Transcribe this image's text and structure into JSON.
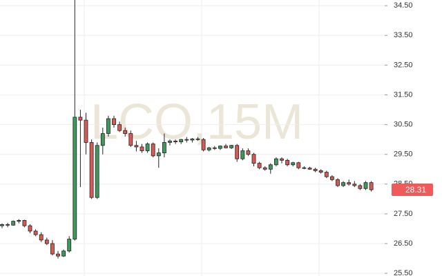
{
  "chart_data": {
    "type": "candlestick",
    "watermark": "LCO,15M",
    "up_color": "#3d9a5c",
    "down_color": "#d65a55",
    "last_price": 28.31,
    "last_price_color": "#ef5a5a",
    "grid": true,
    "ylim": [
      25.41,
      34.69
    ],
    "yticks": [
      {
        "value": 25.5,
        "label": "25.50"
      },
      {
        "value": 26.5,
        "label": "26.50"
      },
      {
        "value": 27.5,
        "label": "27.50"
      },
      {
        "value": 28.5,
        "label": "28.50"
      },
      {
        "value": 29.5,
        "label": "29.50"
      },
      {
        "value": 30.5,
        "label": "30.50"
      },
      {
        "value": 31.5,
        "label": "31.50"
      },
      {
        "value": 32.5,
        "label": "32.50"
      },
      {
        "value": 33.5,
        "label": "33.50"
      },
      {
        "value": 34.5,
        "label": "34.50"
      }
    ],
    "categories": [
      null,
      null,
      null,
      null,
      null,
      null,
      null,
      null,
      null,
      null,
      null,
      null,
      null,
      null,
      null,
      null,
      null,
      null,
      null,
      null,
      null,
      null,
      null,
      null,
      null,
      null,
      null,
      null,
      null,
      null,
      null,
      null,
      null,
      null,
      null,
      null,
      null,
      null,
      null,
      null,
      null,
      null,
      null,
      null,
      null,
      null,
      null,
      null,
      null,
      null,
      null,
      null,
      null,
      null,
      null,
      null,
      null,
      null,
      null,
      null,
      null,
      null,
      null,
      null,
      null,
      null,
      null
    ],
    "open": [
      27.1,
      27.14,
      27.12,
      27.25,
      27.28,
      27.1,
      26.92,
      26.8,
      26.62,
      26.5,
      26.15,
      26.08,
      26.25,
      26.65,
      30.75,
      30.65,
      29.9,
      28.05,
      29.8,
      30.2,
      30.7,
      30.5,
      30.3,
      30.2,
      29.8,
      29.75,
      29.62,
      29.85,
      29.45,
      29.55,
      29.9,
      29.95,
      29.92,
      30.0,
      29.98,
      30.02,
      30.0,
      29.65,
      29.72,
      29.7,
      29.78,
      29.72,
      29.8,
      29.35,
      29.62,
      29.5,
      29.2,
      29.05,
      29.0,
      29.15,
      29.35,
      29.3,
      29.15,
      29.22,
      29.05,
      29.04,
      29.0,
      28.95,
      28.9,
      28.75,
      28.65,
      28.45,
      28.55,
      28.5,
      28.45,
      28.35,
      28.55
    ],
    "high": [
      27.18,
      27.2,
      27.28,
      27.32,
      27.3,
      27.15,
      26.98,
      26.88,
      26.7,
      26.62,
      26.25,
      26.3,
      26.75,
      34.69,
      31.0,
      30.9,
      30.0,
      29.9,
      30.4,
      30.8,
      30.8,
      30.6,
      30.4,
      30.3,
      29.95,
      29.85,
      29.9,
      29.9,
      29.7,
      30.2,
      30.0,
      30.0,
      30.02,
      30.08,
      30.05,
      30.08,
      30.05,
      29.75,
      29.78,
      29.8,
      29.85,
      29.82,
      29.85,
      29.7,
      29.7,
      29.55,
      29.25,
      29.1,
      29.2,
      29.4,
      29.4,
      29.35,
      29.25,
      29.25,
      29.1,
      29.08,
      29.05,
      29.0,
      28.95,
      28.8,
      28.7,
      28.6,
      28.65,
      28.6,
      28.5,
      28.6,
      28.6
    ],
    "low": [
      27.02,
      27.05,
      27.1,
      27.18,
      27.05,
      26.85,
      26.75,
      26.55,
      26.45,
      26.1,
      26.0,
      26.05,
      26.2,
      26.6,
      28.4,
      29.5,
      28.0,
      28.0,
      29.5,
      30.1,
      30.4,
      30.25,
      30.1,
      29.75,
      29.6,
      29.55,
      29.55,
      29.4,
      29.05,
      29.4,
      29.8,
      29.85,
      29.85,
      29.9,
      29.9,
      29.95,
      29.6,
      29.6,
      29.65,
      29.65,
      29.7,
      29.68,
      29.25,
      29.3,
      29.45,
      29.1,
      29.0,
      28.95,
      28.85,
      29.1,
      29.2,
      29.1,
      29.1,
      29.0,
      29.0,
      28.98,
      28.9,
      28.85,
      28.7,
      28.6,
      28.4,
      28.4,
      28.45,
      28.4,
      28.3,
      28.3,
      28.25
    ],
    "close": [
      27.14,
      27.12,
      27.25,
      27.28,
      27.1,
      26.92,
      26.8,
      26.62,
      26.5,
      26.15,
      26.08,
      26.25,
      26.65,
      30.75,
      30.65,
      29.9,
      28.05,
      29.8,
      30.2,
      30.7,
      30.5,
      30.3,
      30.2,
      29.8,
      29.75,
      29.62,
      29.85,
      29.45,
      29.55,
      29.9,
      29.95,
      29.92,
      30.0,
      29.98,
      30.02,
      30.0,
      29.65,
      29.72,
      29.7,
      29.78,
      29.72,
      29.8,
      29.35,
      29.62,
      29.5,
      29.2,
      29.05,
      29.0,
      29.15,
      29.35,
      29.3,
      29.15,
      29.22,
      29.05,
      29.04,
      29.0,
      28.95,
      28.9,
      28.75,
      28.65,
      28.45,
      28.55,
      28.5,
      28.45,
      28.35,
      28.55,
      28.31
    ]
  }
}
